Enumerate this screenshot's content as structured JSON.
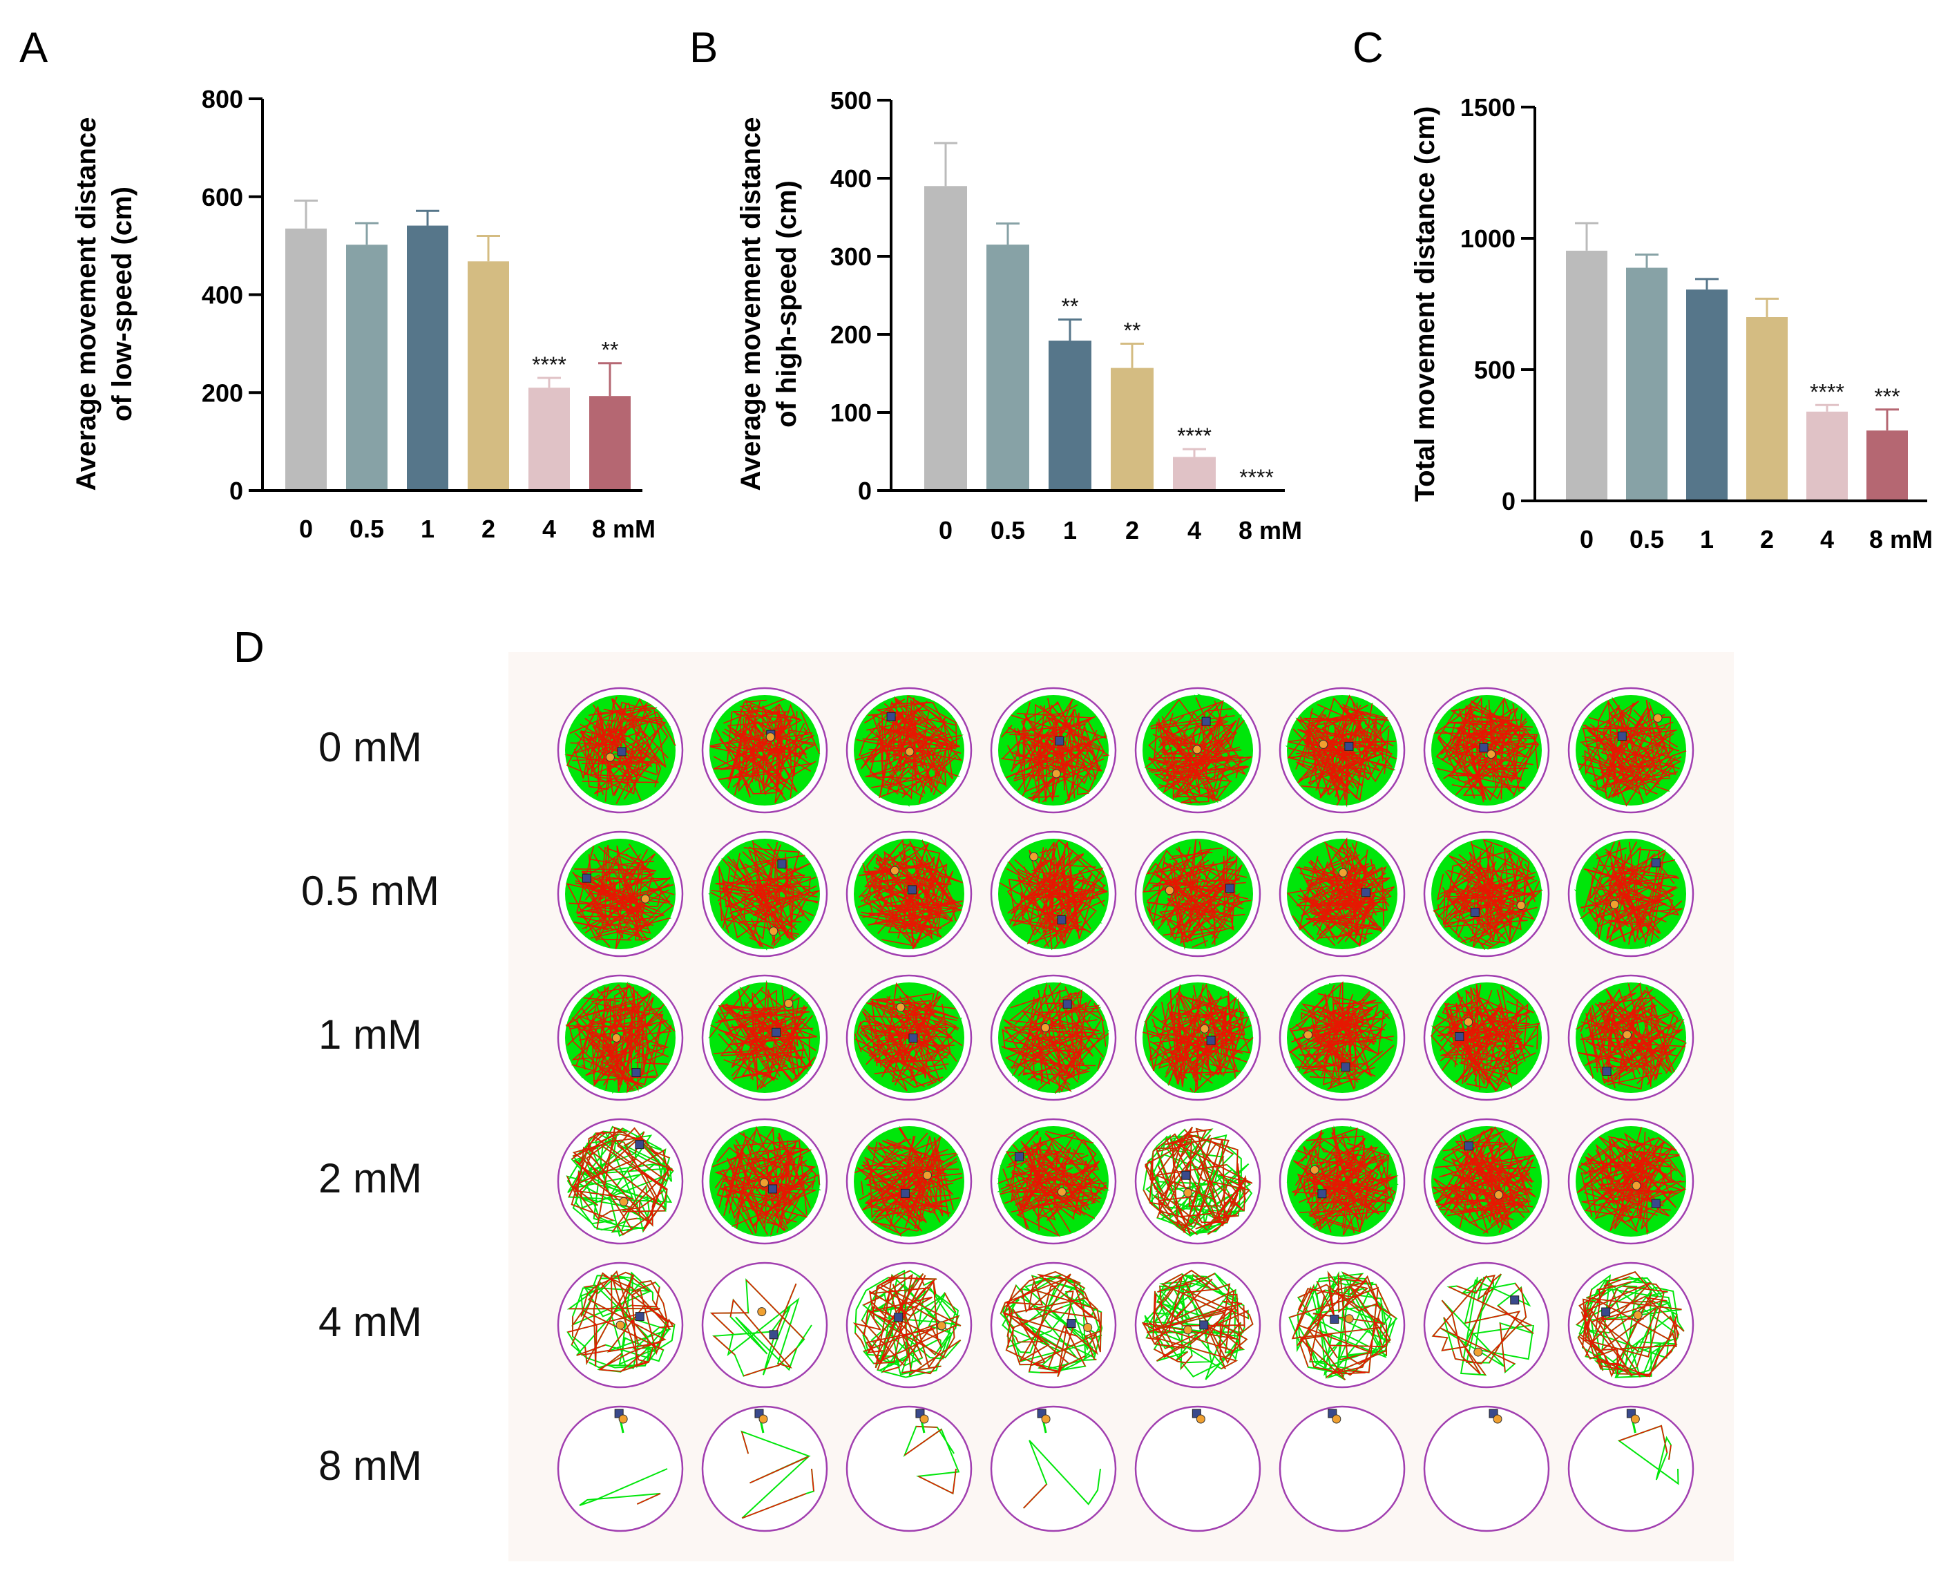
{
  "panels": {
    "a": "A",
    "b": "B",
    "c": "C",
    "d": "D"
  },
  "chart_data": [
    {
      "type": "bar",
      "panel": "A",
      "categories": [
        "0",
        "0.5",
        "1",
        "2",
        "4",
        "8 mM"
      ],
      "values": [
        535,
        502,
        541,
        468,
        210,
        193
      ],
      "errors": [
        57,
        44,
        30,
        52,
        20,
        67
      ],
      "significance": [
        "",
        "",
        "",
        "",
        "****",
        "**"
      ],
      "ylabel_line1": "Average movement distance",
      "ylabel_line2": "of low-speed (cm)",
      "ylim": [
        0,
        800
      ],
      "yticks": [
        0,
        200,
        400,
        600,
        800
      ],
      "colors": [
        "#bbbbbb",
        "#87a2a6",
        "#56768a",
        "#d4bc82",
        "#e0c2c6",
        "#b56772"
      ]
    },
    {
      "type": "bar",
      "panel": "B",
      "categories": [
        "0",
        "0.5",
        "1",
        "2",
        "4",
        "8 mM"
      ],
      "values": [
        390,
        315,
        192,
        157,
        43,
        0
      ],
      "errors": [
        55,
        27,
        27,
        31,
        10,
        0
      ],
      "significance": [
        "",
        "",
        "**",
        "**",
        "****",
        "****"
      ],
      "ylabel_line1": "Average movement distance",
      "ylabel_line2": "of high-speed (cm)",
      "ylim": [
        0,
        500
      ],
      "yticks": [
        0,
        100,
        200,
        300,
        400,
        500
      ],
      "colors": [
        "#bbbbbb",
        "#87a2a6",
        "#56768a",
        "#d4bc82",
        "#e0c2c6",
        "#b56772"
      ]
    },
    {
      "type": "bar",
      "panel": "C",
      "categories": [
        "0",
        "0.5",
        "1",
        "2",
        "4",
        "8 mM"
      ],
      "values": [
        953,
        888,
        805,
        700,
        340,
        268
      ],
      "errors": [
        105,
        50,
        40,
        70,
        25,
        80
      ],
      "significance": [
        "",
        "",
        "",
        "",
        "****",
        "***"
      ],
      "ylabel_line1": "Total movement distance (cm)",
      "ylabel_line2": "",
      "ylim": [
        0,
        1500
      ],
      "yticks": [
        0,
        500,
        1000,
        1500
      ],
      "colors": [
        "#bbbbbb",
        "#87a2a6",
        "#56768a",
        "#d4bc82",
        "#e0c2c6",
        "#b56772"
      ]
    }
  ],
  "tracks": {
    "rows": [
      "0 mM",
      "0.5 mM",
      "1 mM",
      "2 mM",
      "4 mM",
      "8 mM"
    ],
    "wells_per_row": 8,
    "density": [
      [
        1,
        1,
        1,
        1,
        1,
        1,
        1,
        1
      ],
      [
        1,
        1,
        1,
        1,
        1,
        1,
        1,
        1
      ],
      [
        1,
        1,
        1,
        1,
        1,
        1,
        1,
        1
      ],
      [
        0.65,
        1,
        1,
        1,
        0.8,
        1,
        1,
        1
      ],
      [
        0.45,
        0.1,
        0.55,
        0.5,
        0.55,
        0.5,
        0.2,
        0.6
      ],
      [
        0.02,
        0.03,
        0.03,
        0.02,
        0,
        0,
        0,
        0.03
      ]
    ],
    "colors": {
      "background": "#fcf7f4",
      "well": "#a13fb0",
      "slow": "#00e60a",
      "fast": "#ff0000",
      "start_marker": "#3a4a8c",
      "end_marker": "#f0a030"
    }
  }
}
